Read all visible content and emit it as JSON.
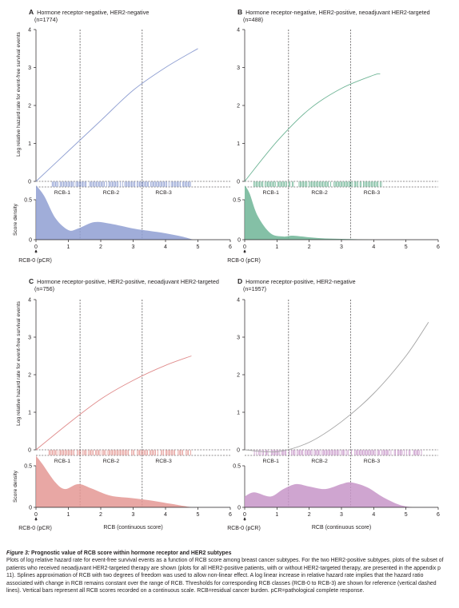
{
  "figure": {
    "panels": [
      {
        "letter": "A",
        "title": "Hormone receptor-negative, HER2-negative",
        "n": "(n=1774)",
        "ylabel_hazard": "Log relative hazard rate for event-free survival events",
        "ylabel_density": "Score density",
        "class_labels": [
          "RCB-1",
          "RCB-2",
          "RCB-3"
        ],
        "xlabel": "",
        "rcb0_label": "RCB-0 (pCR)",
        "color": "#8f9fd2",
        "line_color": "#8f9fd2"
      },
      {
        "letter": "B",
        "title": "Hormone receptor-negative, HER2-positive, neoadjuvant HER2-targeted",
        "n": "(n=488)",
        "ylabel_hazard": "",
        "ylabel_density": "",
        "class_labels": [
          "RCB-1",
          "RCB-2",
          "RCB-3"
        ],
        "xlabel": "",
        "rcb0_label": "RCB-0 (pCR)",
        "color": "#6fb596",
        "line_color": "#6fb596"
      },
      {
        "letter": "C",
        "title": "Hormone receptor-positive, HER2-positive, neoadjuvant HER2-targeted",
        "n": "(n=756)",
        "ylabel_hazard": "Log relative hazard rate for event-free survival events",
        "ylabel_density": "Score density",
        "class_labels": [
          "RCB-1",
          "RCB-2",
          "RCB-3"
        ],
        "xlabel": "RCB (continuous score)",
        "rcb0_label": "RCB-0 (pCR)",
        "color": "#e49894",
        "line_color": "#e08c8c"
      },
      {
        "letter": "D",
        "title": "Hormone receptor-positive, HER2-negative",
        "n": "(n=1957)",
        "ylabel_hazard": "",
        "ylabel_density": "",
        "class_labels": [
          "RCB-1",
          "RCB-2",
          "RCB-3"
        ],
        "xlabel": "RCB (continuous score)",
        "rcb0_label": "RCB-0 (pCR)",
        "color": "#c795c8",
        "line_color": "#a3a3a3"
      }
    ],
    "axis_tick_labels": {
      "x": [
        "0",
        "1",
        "2",
        "3",
        "4",
        "5",
        "6"
      ],
      "hazard_y": [
        "0",
        "1",
        "2",
        "3",
        "4"
      ],
      "density_y": [
        "0",
        "0.5"
      ]
    }
  },
  "caption": {
    "title": "Figure 3:",
    "subtitle": "Prognostic value of RCB score within hormone receptor and HER2 subtypes",
    "body": "Plots of log relative hazard rate for event-free survival events as a function of RCB score among breast cancer subtypes. For the two HER2-positive subtypes, plots of the subset of patients who received neoadjuvant HER2-targeted therapy are shown (plots for all HER2-positive patients, with or without HER2-targeted therapy, are presented in the appendix p 11). Splines approximation of RCB with two degrees of freedom was used to allow non-linear effect. A log linear increase in relative hazard rate implies that the hazard ratio associated with change in RCB remains constant over the range of RCB. Thresholds for corresponding RCB classes (RCB-0 to RCB-3) are shown for reference (vertical dashed lines). Vertical bars represent all RCB scores recorded on a continuous scale. RCB=residual cancer burden. pCR=pathological complete response."
  },
  "chart_data": [
    {
      "panel": "A",
      "type": "line",
      "ylabel": "Log relative hazard rate for event-free survival events",
      "xlim": [
        0,
        6
      ],
      "ylim": [
        0,
        4
      ],
      "thresholds": [
        1.36,
        3.28
      ],
      "hazard_curve": {
        "x": [
          0,
          1,
          2,
          3,
          4,
          5
        ],
        "y": [
          0,
          0.8,
          1.6,
          2.4,
          3.0,
          3.5
        ]
      },
      "density_ylabel": "Score density",
      "density_ylim": [
        0,
        0.5
      ],
      "density_curve": {
        "x": [
          0,
          0.25,
          0.6,
          1.0,
          1.3,
          1.8,
          2.3,
          3.0,
          3.5,
          4.0,
          4.5,
          4.85
        ],
        "y": [
          0.68,
          0.55,
          0.27,
          0.12,
          0.14,
          0.22,
          0.2,
          0.14,
          0.11,
          0.08,
          0.04,
          0.0
        ]
      },
      "rug_range": [
        0.5,
        4.8
      ]
    },
    {
      "panel": "B",
      "type": "line",
      "xlim": [
        0,
        6
      ],
      "ylim": [
        0,
        4
      ],
      "thresholds": [
        1.36,
        3.28
      ],
      "hazard_curve": {
        "x": [
          0,
          1,
          2,
          3,
          4,
          4.2
        ],
        "y": [
          0,
          1.05,
          1.9,
          2.45,
          2.8,
          2.83
        ]
      },
      "density_ylim": [
        0,
        0.5
      ],
      "density_curve": {
        "x": [
          0,
          0.15,
          0.4,
          0.8,
          1.2,
          1.5,
          2.0,
          2.5,
          3.0,
          3.5,
          4.0
        ],
        "y": [
          0.68,
          0.58,
          0.3,
          0.08,
          0.04,
          0.05,
          0.03,
          0.015,
          0.01,
          0.005,
          0.0
        ]
      },
      "rug_range": [
        0.25,
        4.3
      ]
    },
    {
      "panel": "C",
      "type": "line",
      "ylabel": "Log relative hazard rate for event-free survival events",
      "xlim": [
        0,
        6
      ],
      "ylim": [
        0,
        4
      ],
      "thresholds": [
        1.36,
        3.28
      ],
      "hazard_curve": {
        "x": [
          0,
          1,
          2,
          3,
          4,
          4.8
        ],
        "y": [
          0,
          0.7,
          1.35,
          1.85,
          2.25,
          2.5
        ]
      },
      "density_ylabel": "Score density",
      "density_ylim": [
        0,
        0.5
      ],
      "density_curve": {
        "x": [
          0,
          0.2,
          0.6,
          0.9,
          1.3,
          1.7,
          2.3,
          3.0,
          3.6,
          4.2,
          4.8
        ],
        "y": [
          0.62,
          0.52,
          0.3,
          0.22,
          0.28,
          0.23,
          0.14,
          0.11,
          0.08,
          0.04,
          0.0
        ]
      },
      "rug_range": [
        0.4,
        4.8
      ]
    },
    {
      "panel": "D",
      "type": "line",
      "xlim": [
        0,
        6
      ],
      "ylim": [
        0,
        4
      ],
      "thresholds": [
        1.36,
        3.28
      ],
      "hazard_curve": {
        "x": [
          0,
          1,
          2,
          3,
          4,
          5,
          5.7
        ],
        "y": [
          0,
          -0.05,
          0.2,
          0.75,
          1.5,
          2.5,
          3.4
        ]
      },
      "density_ylim": [
        0,
        0.5
      ],
      "density_curve": {
        "x": [
          0,
          0.3,
          0.8,
          1.2,
          1.6,
          2.0,
          2.5,
          3.0,
          3.3,
          3.8,
          4.3,
          4.8,
          5.2
        ],
        "y": [
          0.13,
          0.18,
          0.13,
          0.22,
          0.28,
          0.25,
          0.22,
          0.28,
          0.3,
          0.24,
          0.12,
          0.03,
          0.0
        ]
      },
      "rug_range": [
        0.3,
        5.5
      ]
    }
  ]
}
